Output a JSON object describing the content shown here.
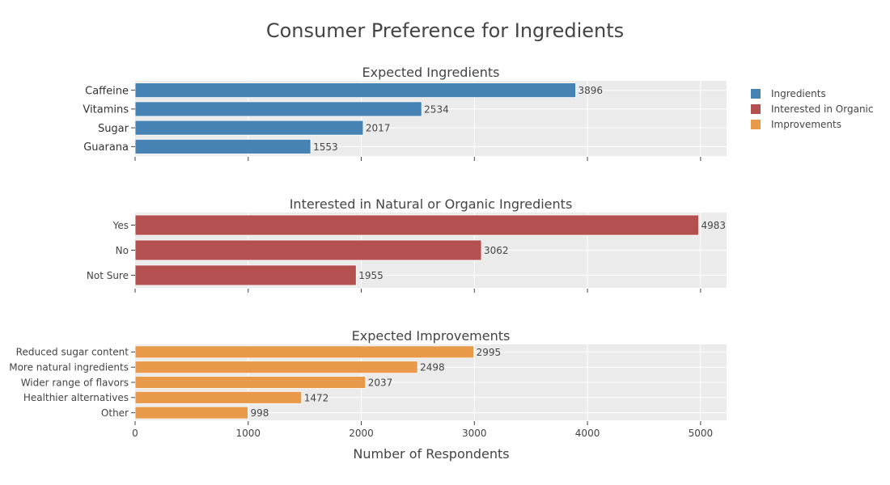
{
  "title": "Consumer Preference for Ingredients",
  "xlabel": "Number of Respondents",
  "legend": [
    {
      "name": "Ingredients",
      "color": "#4682B4"
    },
    {
      "name": "Interested in Organic",
      "color": "#B55050"
    },
    {
      "name": "Improvements",
      "color": "#E8994A"
    }
  ],
  "chart_data": [
    {
      "type": "bar",
      "orientation": "horizontal",
      "title": "Expected Ingredients",
      "series_name": "Ingredients",
      "color": "#4682B4",
      "categories": [
        "Caffeine",
        "Vitamins",
        "Sugar",
        "Guarana"
      ],
      "values": [
        3896,
        2534,
        2017,
        1553
      ],
      "xlim": [
        0,
        5230
      ]
    },
    {
      "type": "bar",
      "orientation": "horizontal",
      "title": "Interested in Natural or Organic Ingredients",
      "series_name": "Interested in Organic",
      "color": "#B55050",
      "categories": [
        "Yes",
        "No",
        "Not Sure"
      ],
      "values": [
        4983,
        3062,
        1955
      ],
      "xlim": [
        0,
        5230
      ]
    },
    {
      "type": "bar",
      "orientation": "horizontal",
      "title": "Expected Improvements",
      "series_name": "Improvements",
      "color": "#E8994A",
      "categories": [
        "Reduced sugar content",
        "More natural ingredients",
        "Wider range of flavors",
        "Healthier alternatives",
        "Other"
      ],
      "values": [
        2995,
        2498,
        2037,
        1472,
        998
      ],
      "xlim": [
        0,
        5230
      ],
      "xticks": [
        0,
        1000,
        2000,
        3000,
        4000,
        5000
      ],
      "xtick_labels": [
        "0",
        "1000",
        "2000",
        "3000",
        "4000",
        "5000"
      ]
    }
  ]
}
